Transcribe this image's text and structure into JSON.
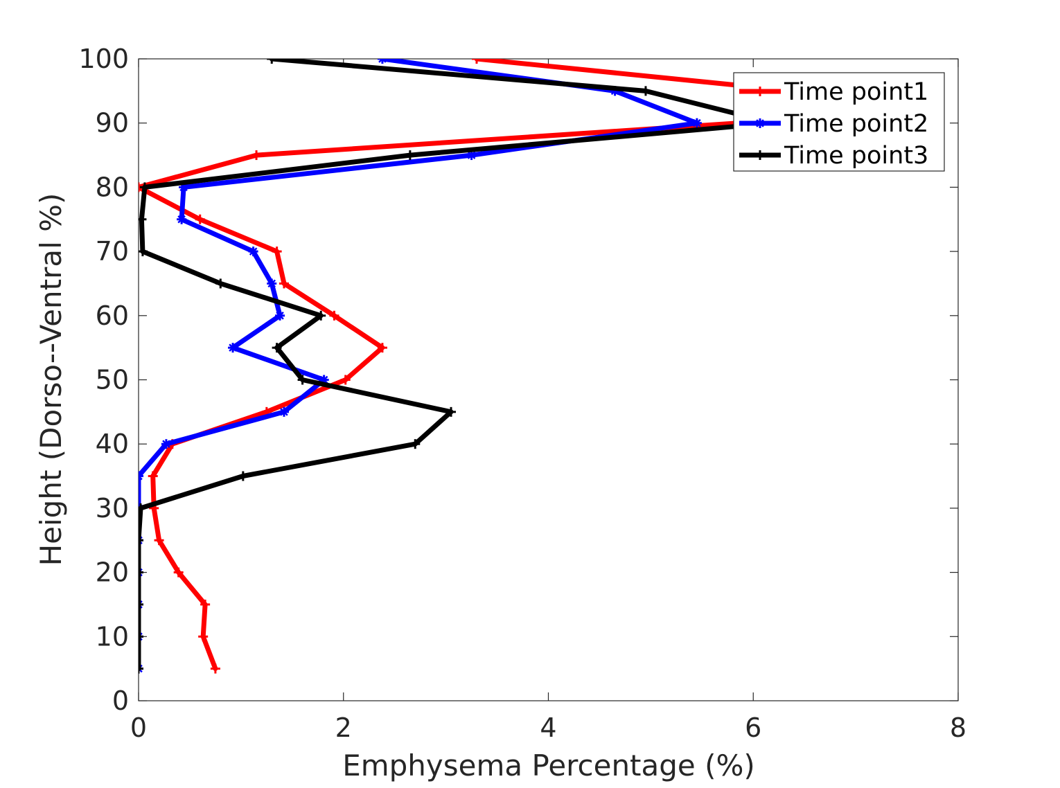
{
  "chart_data": {
    "type": "line",
    "title": "",
    "xlabel": "Emphysema Percentage (%)",
    "ylabel": "Height (Dorso--Ventral %)",
    "xlim": [
      0,
      8
    ],
    "ylim": [
      0,
      100
    ],
    "xticks": [
      "0",
      "2",
      "4",
      "6",
      "8"
    ],
    "yticks": [
      "0",
      "10",
      "20",
      "30",
      "40",
      "50",
      "60",
      "70",
      "80",
      "90",
      "100"
    ],
    "grid": false,
    "legend_position": "top-right",
    "y": [
      5,
      10,
      15,
      20,
      25,
      30,
      35,
      40,
      45,
      50,
      55,
      60,
      65,
      70,
      75,
      80,
      85,
      90,
      95,
      100
    ],
    "series": [
      {
        "name": "Time point1",
        "color": "#ff0000",
        "marker": "plus",
        "values": [
          0.75,
          0.63,
          0.65,
          0.39,
          0.2,
          0.15,
          0.14,
          0.33,
          1.25,
          2.02,
          2.38,
          1.91,
          1.42,
          1.35,
          0.6,
          0.0,
          1.15,
          5.85,
          6.4,
          3.3
        ]
      },
      {
        "name": "Time point2",
        "color": "#0000ff",
        "marker": "asterisk",
        "values": [
          0.0,
          0.0,
          0.0,
          0.0,
          0.0,
          0.0,
          0.0,
          0.27,
          1.42,
          1.81,
          0.92,
          1.38,
          1.3,
          1.12,
          0.42,
          0.44,
          3.25,
          5.45,
          4.65,
          2.38
        ]
      },
      {
        "name": "Time point3",
        "color": "#000000",
        "marker": "plus",
        "values": [
          0.0,
          0.0,
          0.0,
          0.0,
          0.0,
          0.02,
          1.02,
          2.7,
          3.05,
          1.6,
          1.35,
          1.78,
          0.8,
          0.04,
          0.03,
          0.06,
          2.65,
          6.2,
          4.95,
          1.3
        ]
      }
    ]
  }
}
